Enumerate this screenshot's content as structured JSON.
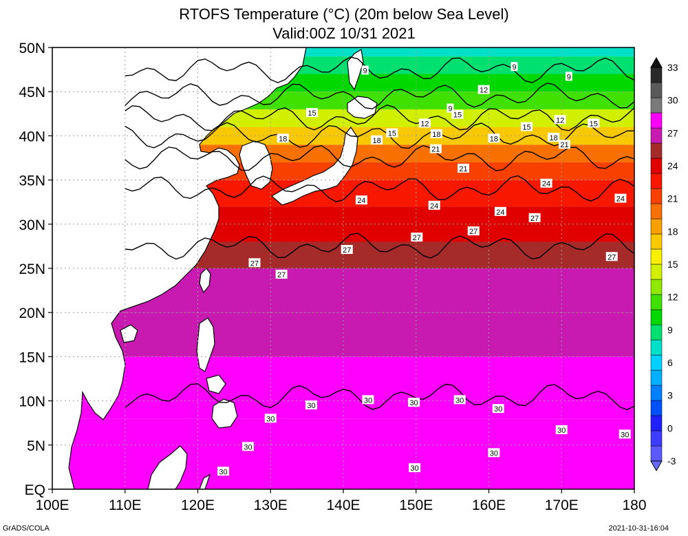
{
  "title": "RTOFS Temperature (°C) (20m below Sea Level)",
  "subtitle": "Valid:00Z 10/31 2021",
  "footer_left": "GrADS/COLA",
  "footer_right": "2021-10-31-16:04",
  "colors": {
    "land": "#ffffff",
    "grid": "#a0a0a0",
    "contour": "#000000",
    "magenta": "#ff00ff",
    "dark_magenta": "#c71ab0",
    "gray": "#7a7a7a"
  },
  "chart_data": {
    "type": "heatmap",
    "title": "RTOFS Temperature (°C) (20m below Sea Level)",
    "subtitle": "Valid:00Z 10/31 2021",
    "xlabel": "",
    "ylabel": "",
    "x_ticks": [
      "100E",
      "110E",
      "120E",
      "130E",
      "140E",
      "150E",
      "160E",
      "170E",
      "180"
    ],
    "y_ticks": [
      "EQ",
      "5N",
      "10N",
      "15N",
      "20N",
      "25N",
      "30N",
      "35N",
      "40N",
      "45N",
      "50N"
    ],
    "lon_range": [
      100,
      180
    ],
    "lat_range": [
      0,
      50
    ],
    "grid": true,
    "colorbar": {
      "labels": [
        "-3",
        "0",
        "3",
        "6",
        "9",
        "12",
        "15",
        "18",
        "21",
        "24",
        "27",
        "30",
        "33"
      ],
      "bin_values": [
        -3,
        -1.5,
        0,
        1.5,
        3,
        4.5,
        6,
        7.5,
        9,
        10.5,
        12,
        13.5,
        15,
        16.5,
        18,
        19.5,
        21,
        22.5,
        24,
        25.5,
        27,
        28.5,
        30,
        31,
        32,
        33
      ],
      "colors": [
        "#5a5aff",
        "#3c3cff",
        "#2020ff",
        "#0050ff",
        "#0080ff",
        "#00b0ff",
        "#00d0ff",
        "#00e0c8",
        "#00e070",
        "#00d800",
        "#40e000",
        "#90e800",
        "#d0f000",
        "#f8f000",
        "#f8c800",
        "#f8a000",
        "#f87000",
        "#f84000",
        "#f81800",
        "#e00000",
        "#a52a2a",
        "#c81ab0",
        "#ff00ff",
        "#7a7a7a",
        "#5a5a5a",
        "#2a2a2a"
      ]
    },
    "bands": [
      {
        "lat_from": 0,
        "lat_to": 8,
        "value": 30.5
      },
      {
        "lat_from": 8,
        "lat_to": 15,
        "value": 30
      },
      {
        "lat_from": 15,
        "lat_to": 20,
        "value": 29
      },
      {
        "lat_from": 20,
        "lat_to": 25,
        "value": 28
      },
      {
        "lat_from": 25,
        "lat_to": 28,
        "value": 27
      },
      {
        "lat_from": 28,
        "lat_to": 32,
        "value": 25.5
      },
      {
        "lat_from": 32,
        "lat_to": 35,
        "value": 24
      },
      {
        "lat_from": 35,
        "lat_to": 37,
        "value": 22.5
      },
      {
        "lat_from": 37,
        "lat_to": 39,
        "value": 21
      },
      {
        "lat_from": 39,
        "lat_to": 41,
        "value": 18
      },
      {
        "lat_from": 41,
        "lat_to": 43,
        "value": 15
      },
      {
        "lat_from": 43,
        "lat_to": 45,
        "value": 12
      },
      {
        "lat_from": 45,
        "lat_to": 47,
        "value": 10.5
      },
      {
        "lat_from": 47,
        "lat_to": 49,
        "value": 9
      },
      {
        "lat_from": 49,
        "lat_to": 50,
        "value": 7.5
      }
    ],
    "contour_levels": [
      9,
      12,
      15,
      18,
      21,
      24,
      27,
      30
    ],
    "contour_labels": [
      {
        "text": "9",
        "lon": 143.0,
        "lat": 47.4
      },
      {
        "text": "9",
        "lon": 163.5,
        "lat": 47.8
      },
      {
        "text": "9",
        "lon": 171.0,
        "lat": 46.7
      },
      {
        "text": "9",
        "lon": 154.7,
        "lat": 43.1
      },
      {
        "text": "12",
        "lon": 159.3,
        "lat": 45.2
      },
      {
        "text": "12",
        "lon": 169.8,
        "lat": 41.8
      },
      {
        "text": "12",
        "lon": 151.2,
        "lat": 41.4
      },
      {
        "text": "15",
        "lon": 135.7,
        "lat": 42.6
      },
      {
        "text": "15",
        "lon": 155.7,
        "lat": 42.4
      },
      {
        "text": "15",
        "lon": 146.7,
        "lat": 40.3
      },
      {
        "text": "15",
        "lon": 165.2,
        "lat": 41.0
      },
      {
        "text": "15",
        "lon": 174.4,
        "lat": 41.4
      },
      {
        "text": "18",
        "lon": 131.7,
        "lat": 39.7
      },
      {
        "text": "18",
        "lon": 144.6,
        "lat": 39.5
      },
      {
        "text": "18",
        "lon": 152.8,
        "lat": 40.2
      },
      {
        "text": "18",
        "lon": 160.7,
        "lat": 39.7
      },
      {
        "text": "18",
        "lon": 168.9,
        "lat": 39.8
      },
      {
        "text": "21",
        "lon": 152.7,
        "lat": 38.5
      },
      {
        "text": "21",
        "lon": 156.5,
        "lat": 36.3
      },
      {
        "text": "21",
        "lon": 170.4,
        "lat": 39.0
      },
      {
        "text": "24",
        "lon": 142.5,
        "lat": 32.7
      },
      {
        "text": "24",
        "lon": 152.5,
        "lat": 32.1
      },
      {
        "text": "24",
        "lon": 161.6,
        "lat": 31.4
      },
      {
        "text": "24",
        "lon": 167.9,
        "lat": 34.6
      },
      {
        "text": "24",
        "lon": 178.1,
        "lat": 32.9
      },
      {
        "text": "27",
        "lon": 127.8,
        "lat": 25.6
      },
      {
        "text": "27",
        "lon": 131.5,
        "lat": 24.3
      },
      {
        "text": "27",
        "lon": 140.5,
        "lat": 27.1
      },
      {
        "text": "27",
        "lon": 150.1,
        "lat": 28.5
      },
      {
        "text": "27",
        "lon": 157.9,
        "lat": 29.2
      },
      {
        "text": "27",
        "lon": 166.3,
        "lat": 30.7
      },
      {
        "text": "27",
        "lon": 176.9,
        "lat": 26.3
      },
      {
        "text": "30",
        "lon": 130.0,
        "lat": 8.0
      },
      {
        "text": "30",
        "lon": 135.6,
        "lat": 9.5
      },
      {
        "text": "30",
        "lon": 143.4,
        "lat": 10.1
      },
      {
        "text": "30",
        "lon": 149.7,
        "lat": 9.8
      },
      {
        "text": "30",
        "lon": 156.0,
        "lat": 10.1
      },
      {
        "text": "30",
        "lon": 161.3,
        "lat": 9.1
      },
      {
        "text": "30",
        "lon": 170.0,
        "lat": 6.7
      },
      {
        "text": "30",
        "lon": 178.7,
        "lat": 6.2
      },
      {
        "text": "30",
        "lon": 126.9,
        "lat": 4.8
      },
      {
        "text": "30",
        "lon": 160.7,
        "lat": 4.1
      },
      {
        "text": "30",
        "lon": 149.8,
        "lat": 2.4
      },
      {
        "text": "30",
        "lon": 123.5,
        "lat": 2.0
      }
    ]
  }
}
